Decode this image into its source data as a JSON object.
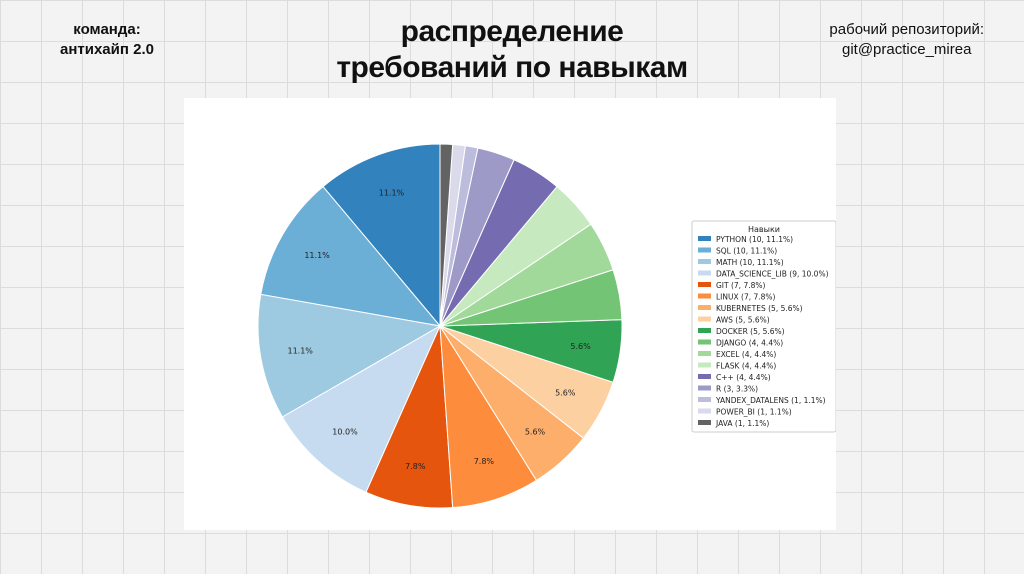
{
  "header": {
    "team_line1": "команда:",
    "team_line2": "антихайп 2.0",
    "title_line1": "распределение",
    "title_line2": "требований по навыкам",
    "repo_line1": "рабочий репозиторий:",
    "repo_line2": "git@practice_mirea"
  },
  "chart_data": {
    "type": "pie",
    "legend_title": "Навыки",
    "legend_position": "right",
    "slices": [
      {
        "name": "PYTHON",
        "value": 10,
        "percent": 11.1,
        "color": "#3182bd",
        "label": "11.1%"
      },
      {
        "name": "SQL",
        "value": 10,
        "percent": 11.1,
        "color": "#6baed6",
        "label": "11.1%"
      },
      {
        "name": "MATH",
        "value": 10,
        "percent": 11.1,
        "color": "#9ecae1",
        "label": "11.1%"
      },
      {
        "name": "DATA_SCIENCE_LIB",
        "value": 9,
        "percent": 10.0,
        "color": "#c6dbef",
        "label": "10.0%"
      },
      {
        "name": "GIT",
        "value": 7,
        "percent": 7.8,
        "color": "#e6550d",
        "label": "7.8%"
      },
      {
        "name": "LINUX",
        "value": 7,
        "percent": 7.8,
        "color": "#fd8d3c",
        "label": "7.8%"
      },
      {
        "name": "KUBERNETES",
        "value": 5,
        "percent": 5.6,
        "color": "#fdae6b",
        "label": "5.6%"
      },
      {
        "name": "AWS",
        "value": 5,
        "percent": 5.6,
        "color": "#fdd0a2",
        "label": "5.6%"
      },
      {
        "name": "DOCKER",
        "value": 5,
        "percent": 5.6,
        "color": "#31a354",
        "label": "5.6%"
      },
      {
        "name": "DJANGO",
        "value": 4,
        "percent": 4.4,
        "color": "#74c476",
        "label": ""
      },
      {
        "name": "EXCEL",
        "value": 4,
        "percent": 4.4,
        "color": "#a1d99b",
        "label": ""
      },
      {
        "name": "FLASK",
        "value": 4,
        "percent": 4.4,
        "color": "#c7e9c0",
        "label": ""
      },
      {
        "name": "C++",
        "value": 4,
        "percent": 4.4,
        "color": "#756bb1",
        "label": ""
      },
      {
        "name": "R",
        "value": 3,
        "percent": 3.3,
        "color": "#9e9ac8",
        "label": ""
      },
      {
        "name": "YANDEX_DATALENS",
        "value": 1,
        "percent": 1.1,
        "color": "#bcbddc",
        "label": ""
      },
      {
        "name": "POWER_BI",
        "value": 1,
        "percent": 1.1,
        "color": "#dadaeb",
        "label": ""
      },
      {
        "name": "JAVA",
        "value": 1,
        "percent": 1.1,
        "color": "#636363",
        "label": ""
      }
    ]
  }
}
